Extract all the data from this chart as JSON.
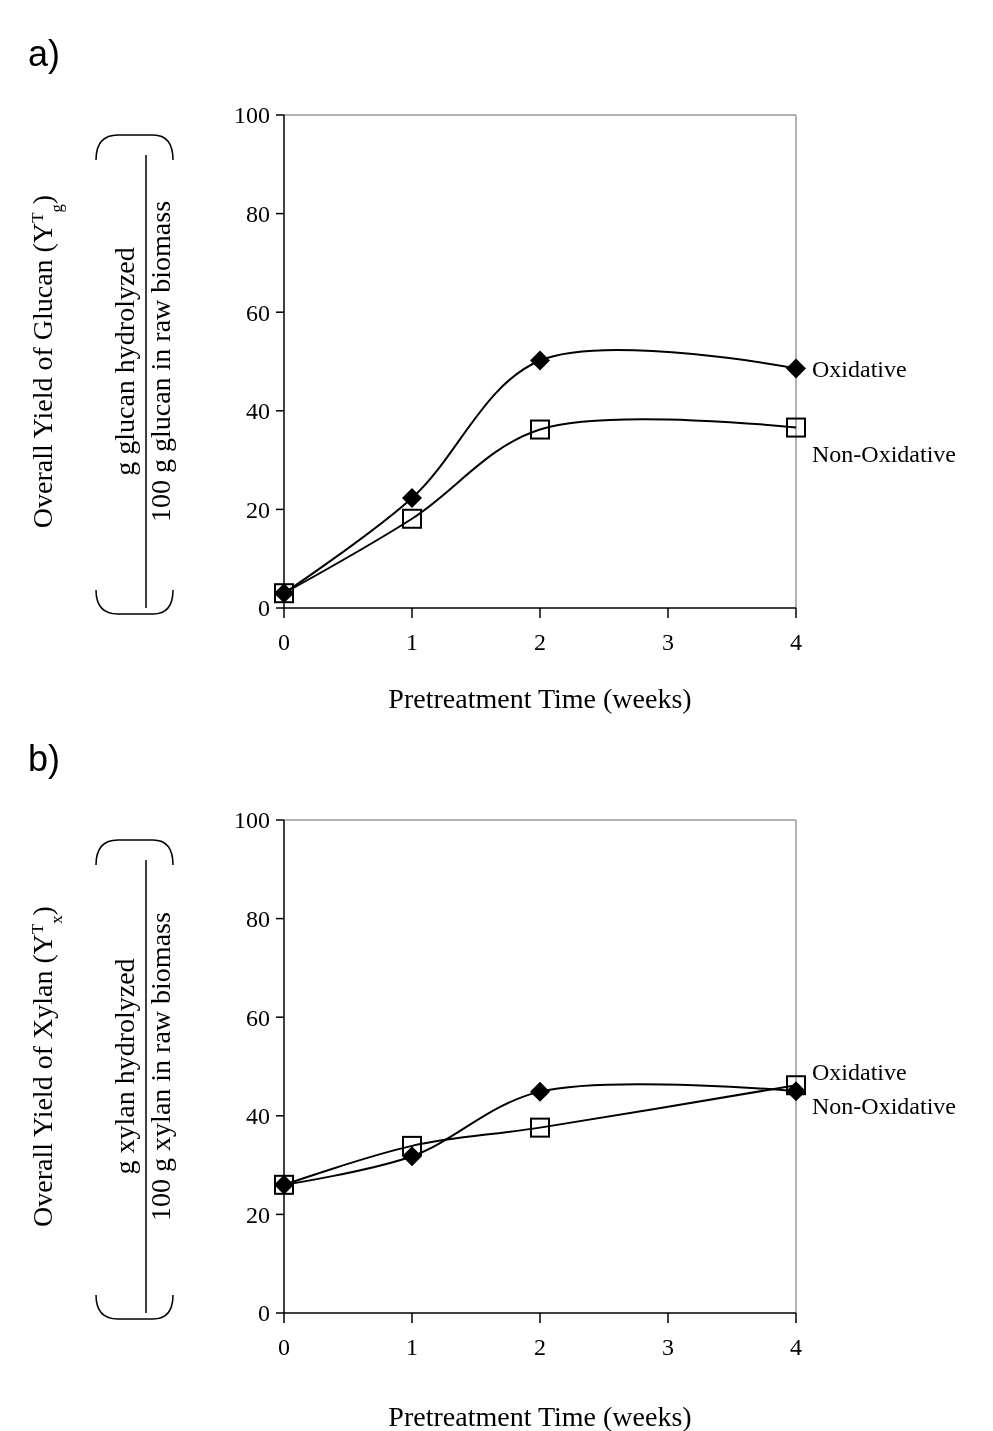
{
  "chart_data": [
    {
      "type": "line",
      "title": "a)",
      "xlabel": "Pretreatment Time (weeks)",
      "ylabel": "Overall Yield of Glucan (Y$^{T}$$_{g}$)",
      "annotations": [
        "g glucan hydrolyzed",
        "100 g glucan in raw biomass"
      ],
      "x": [
        0,
        1,
        2,
        4
      ],
      "series": [
        {
          "name": "Oxidative",
          "color": "#000000",
          "marker": "diamond",
          "values": [
            3,
            22.3,
            50.2,
            48.6
          ]
        },
        {
          "name": "Non-Oxidative",
          "color": "#000000",
          "marker": "square",
          "values": [
            3,
            18.1,
            36.2,
            36.6
          ]
        }
      ],
      "xlim": [
        0,
        4
      ],
      "xticks": [
        0,
        1,
        2,
        3,
        4
      ],
      "ylim": [
        0,
        100
      ],
      "yticks": [
        0,
        20,
        40,
        60,
        80,
        100
      ],
      "grid": false
    },
    {
      "type": "line",
      "title": "b)",
      "xlabel": "Pretreatment Time (weeks)",
      "ylabel": "Overall Yield of Xylan (Y$^{T}$$_{x}$)",
      "annotations": [
        "g xylan hydrolyzed",
        "100 g xylan in raw biomass"
      ],
      "x": [
        0,
        1,
        2,
        4
      ],
      "series": [
        {
          "name": "Oxidative",
          "color": "#000000",
          "marker": "diamond",
          "values": [
            26,
            31.8,
            44.9,
            45
          ]
        },
        {
          "name": "Non-Oxidative",
          "color": "#000000",
          "marker": "square",
          "values": [
            26,
            33.9,
            37.6,
            46.2
          ]
        }
      ],
      "xlim": [
        0,
        4
      ],
      "xticks": [
        0,
        1,
        2,
        3,
        4
      ],
      "ylim": [
        0,
        100
      ],
      "yticks": [
        0,
        20,
        40,
        60,
        80,
        100
      ],
      "grid": false
    }
  ]
}
